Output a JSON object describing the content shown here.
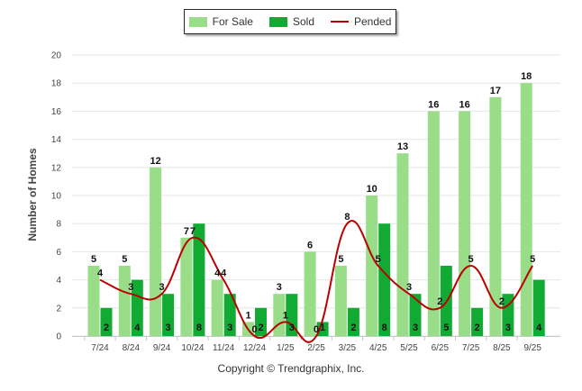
{
  "chart_data": {
    "type": "bar",
    "ylabel": "Number of Homes",
    "xlabel": "",
    "ylim": [
      0,
      20
    ],
    "yticks": [
      0,
      2,
      4,
      6,
      8,
      10,
      12,
      14,
      16,
      18,
      20
    ],
    "categories": [
      "7/24",
      "8/24",
      "9/24",
      "10/24",
      "11/24",
      "12/24",
      "1/25",
      "2/25",
      "3/25",
      "4/25",
      "5/25",
      "6/25",
      "7/25",
      "8/25",
      "9/25"
    ],
    "series": [
      {
        "name": "For Sale",
        "kind": "bar",
        "color": "#99dd88",
        "values": [
          5,
          5,
          12,
          7,
          4,
          1,
          3,
          6,
          5,
          10,
          13,
          16,
          16,
          17,
          18
        ]
      },
      {
        "name": "Sold",
        "kind": "bar",
        "color": "#11aa33",
        "values": [
          2,
          4,
          3,
          8,
          3,
          2,
          3,
          1,
          2,
          8,
          3,
          5,
          2,
          3,
          4
        ]
      },
      {
        "name": "Pended",
        "kind": "line",
        "color": "#bb0000",
        "values": [
          4,
          3,
          3,
          7,
          4,
          0,
          1,
          0,
          8,
          5,
          3,
          2,
          5,
          2,
          5
        ]
      }
    ],
    "legend_position": "top-center",
    "grid": true
  },
  "copyright": "Copyright © Trendgraphix, Inc."
}
